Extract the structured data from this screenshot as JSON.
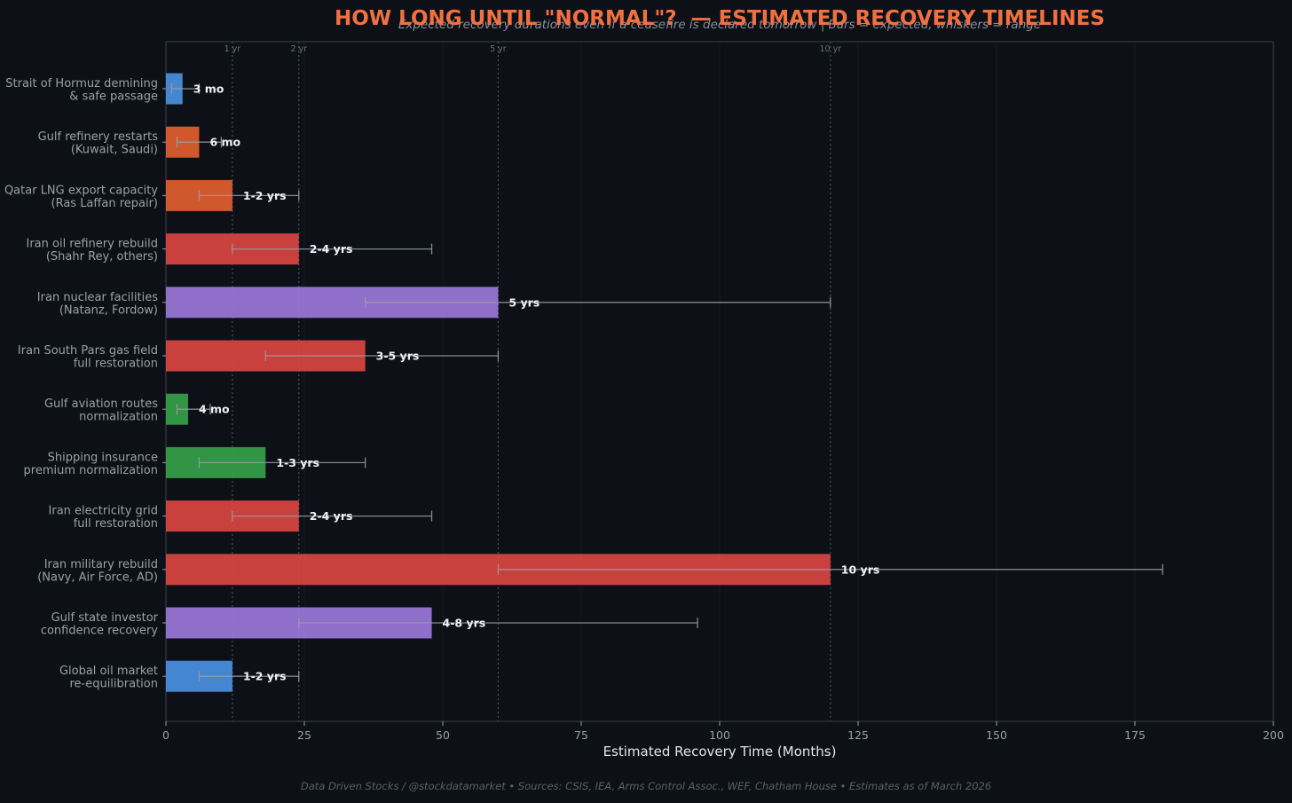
{
  "chart_data": {
    "type": "bar",
    "orientation": "horizontal",
    "title": "HOW LONG UNTIL \"NORMAL\"?  — ESTIMATED RECOVERY TIMELINES",
    "subtitle": "Expected recovery durations even if a ceasefire is declared tomorrow  |  Bars = expected, whiskers = range",
    "xlabel": "Estimated Recovery Time (Months)",
    "xlim": [
      0,
      200
    ],
    "xticks": [
      0,
      25,
      50,
      75,
      100,
      125,
      150,
      175,
      200
    ],
    "reference_lines": [
      {
        "value": 12,
        "label": "1 yr"
      },
      {
        "value": 24,
        "label": "2 yr"
      },
      {
        "value": 60,
        "label": "5 yr"
      },
      {
        "value": 120,
        "label": "10 yr"
      }
    ],
    "categories": [
      {
        "line1": "Strait of Hormuz demining",
        "line2": "& safe passage",
        "expected": 3,
        "low": 1,
        "high": 6,
        "label": "3 mo",
        "color": "#4a90e2"
      },
      {
        "line1": "Gulf refinery restarts",
        "line2": "(Kuwait, Saudi)",
        "expected": 6,
        "low": 2,
        "high": 10,
        "label": "6 mo",
        "color": "#e06030"
      },
      {
        "line1": "Qatar LNG export capacity",
        "line2": "(Ras Laffan repair)",
        "expected": 12,
        "low": 6,
        "high": 24,
        "label": "1-2 yrs",
        "color": "#e06030"
      },
      {
        "line1": "Iran oil refinery rebuild",
        "line2": "(Shahr Rey, others)",
        "expected": 24,
        "low": 12,
        "high": 48,
        "label": "2-4 yrs",
        "color": "#d94540"
      },
      {
        "line1": "Iran nuclear facilities",
        "line2": "(Natanz, Fordow)",
        "expected": 60,
        "low": 36,
        "high": 120,
        "label": "5 yrs",
        "color": "#9b77db"
      },
      {
        "line1": "Iran South Pars gas field",
        "line2": "full restoration",
        "expected": 36,
        "low": 18,
        "high": 60,
        "label": "3-5 yrs",
        "color": "#d94540"
      },
      {
        "line1": "Gulf aviation routes",
        "line2": "normalization",
        "expected": 4,
        "low": 2,
        "high": 8,
        "label": "4 mo",
        "color": "#35a04a"
      },
      {
        "line1": "Shipping insurance",
        "line2": "premium normalization",
        "expected": 18,
        "low": 6,
        "high": 36,
        "label": "1-3 yrs",
        "color": "#35a04a"
      },
      {
        "line1": "Iran electricity grid",
        "line2": "full restoration",
        "expected": 24,
        "low": 12,
        "high": 48,
        "label": "2-4 yrs",
        "color": "#d94540"
      },
      {
        "line1": "Iran military rebuild",
        "line2": "(Navy, Air Force, AD)",
        "expected": 120,
        "low": 60,
        "high": 180,
        "label": "10 yrs",
        "color": "#d94540"
      },
      {
        "line1": "Gulf state investor",
        "line2": "confidence recovery",
        "expected": 48,
        "low": 24,
        "high": 96,
        "label": "4-8 yrs",
        "color": "#9b77db"
      },
      {
        "line1": "Global oil market",
        "line2": "re-equilibration",
        "expected": 12,
        "low": 6,
        "high": 24,
        "label": "1-2 yrs",
        "color": "#4a90e2"
      }
    ],
    "footer": "Data Driven Stocks / @stockdatamarket  •  Sources: CSIS, IEA, Arms Control Assoc., WEF, Chatham House  •  Estimates as of March 2026"
  },
  "colors": {
    "background": "#0d1017",
    "title": "#f07040",
    "axis_text": "#9aa0a8",
    "spine": "#3a3f48",
    "whisker": "#9a9ea6",
    "value_label": "#f2f2f2",
    "ref_line": "#4a4f58"
  }
}
